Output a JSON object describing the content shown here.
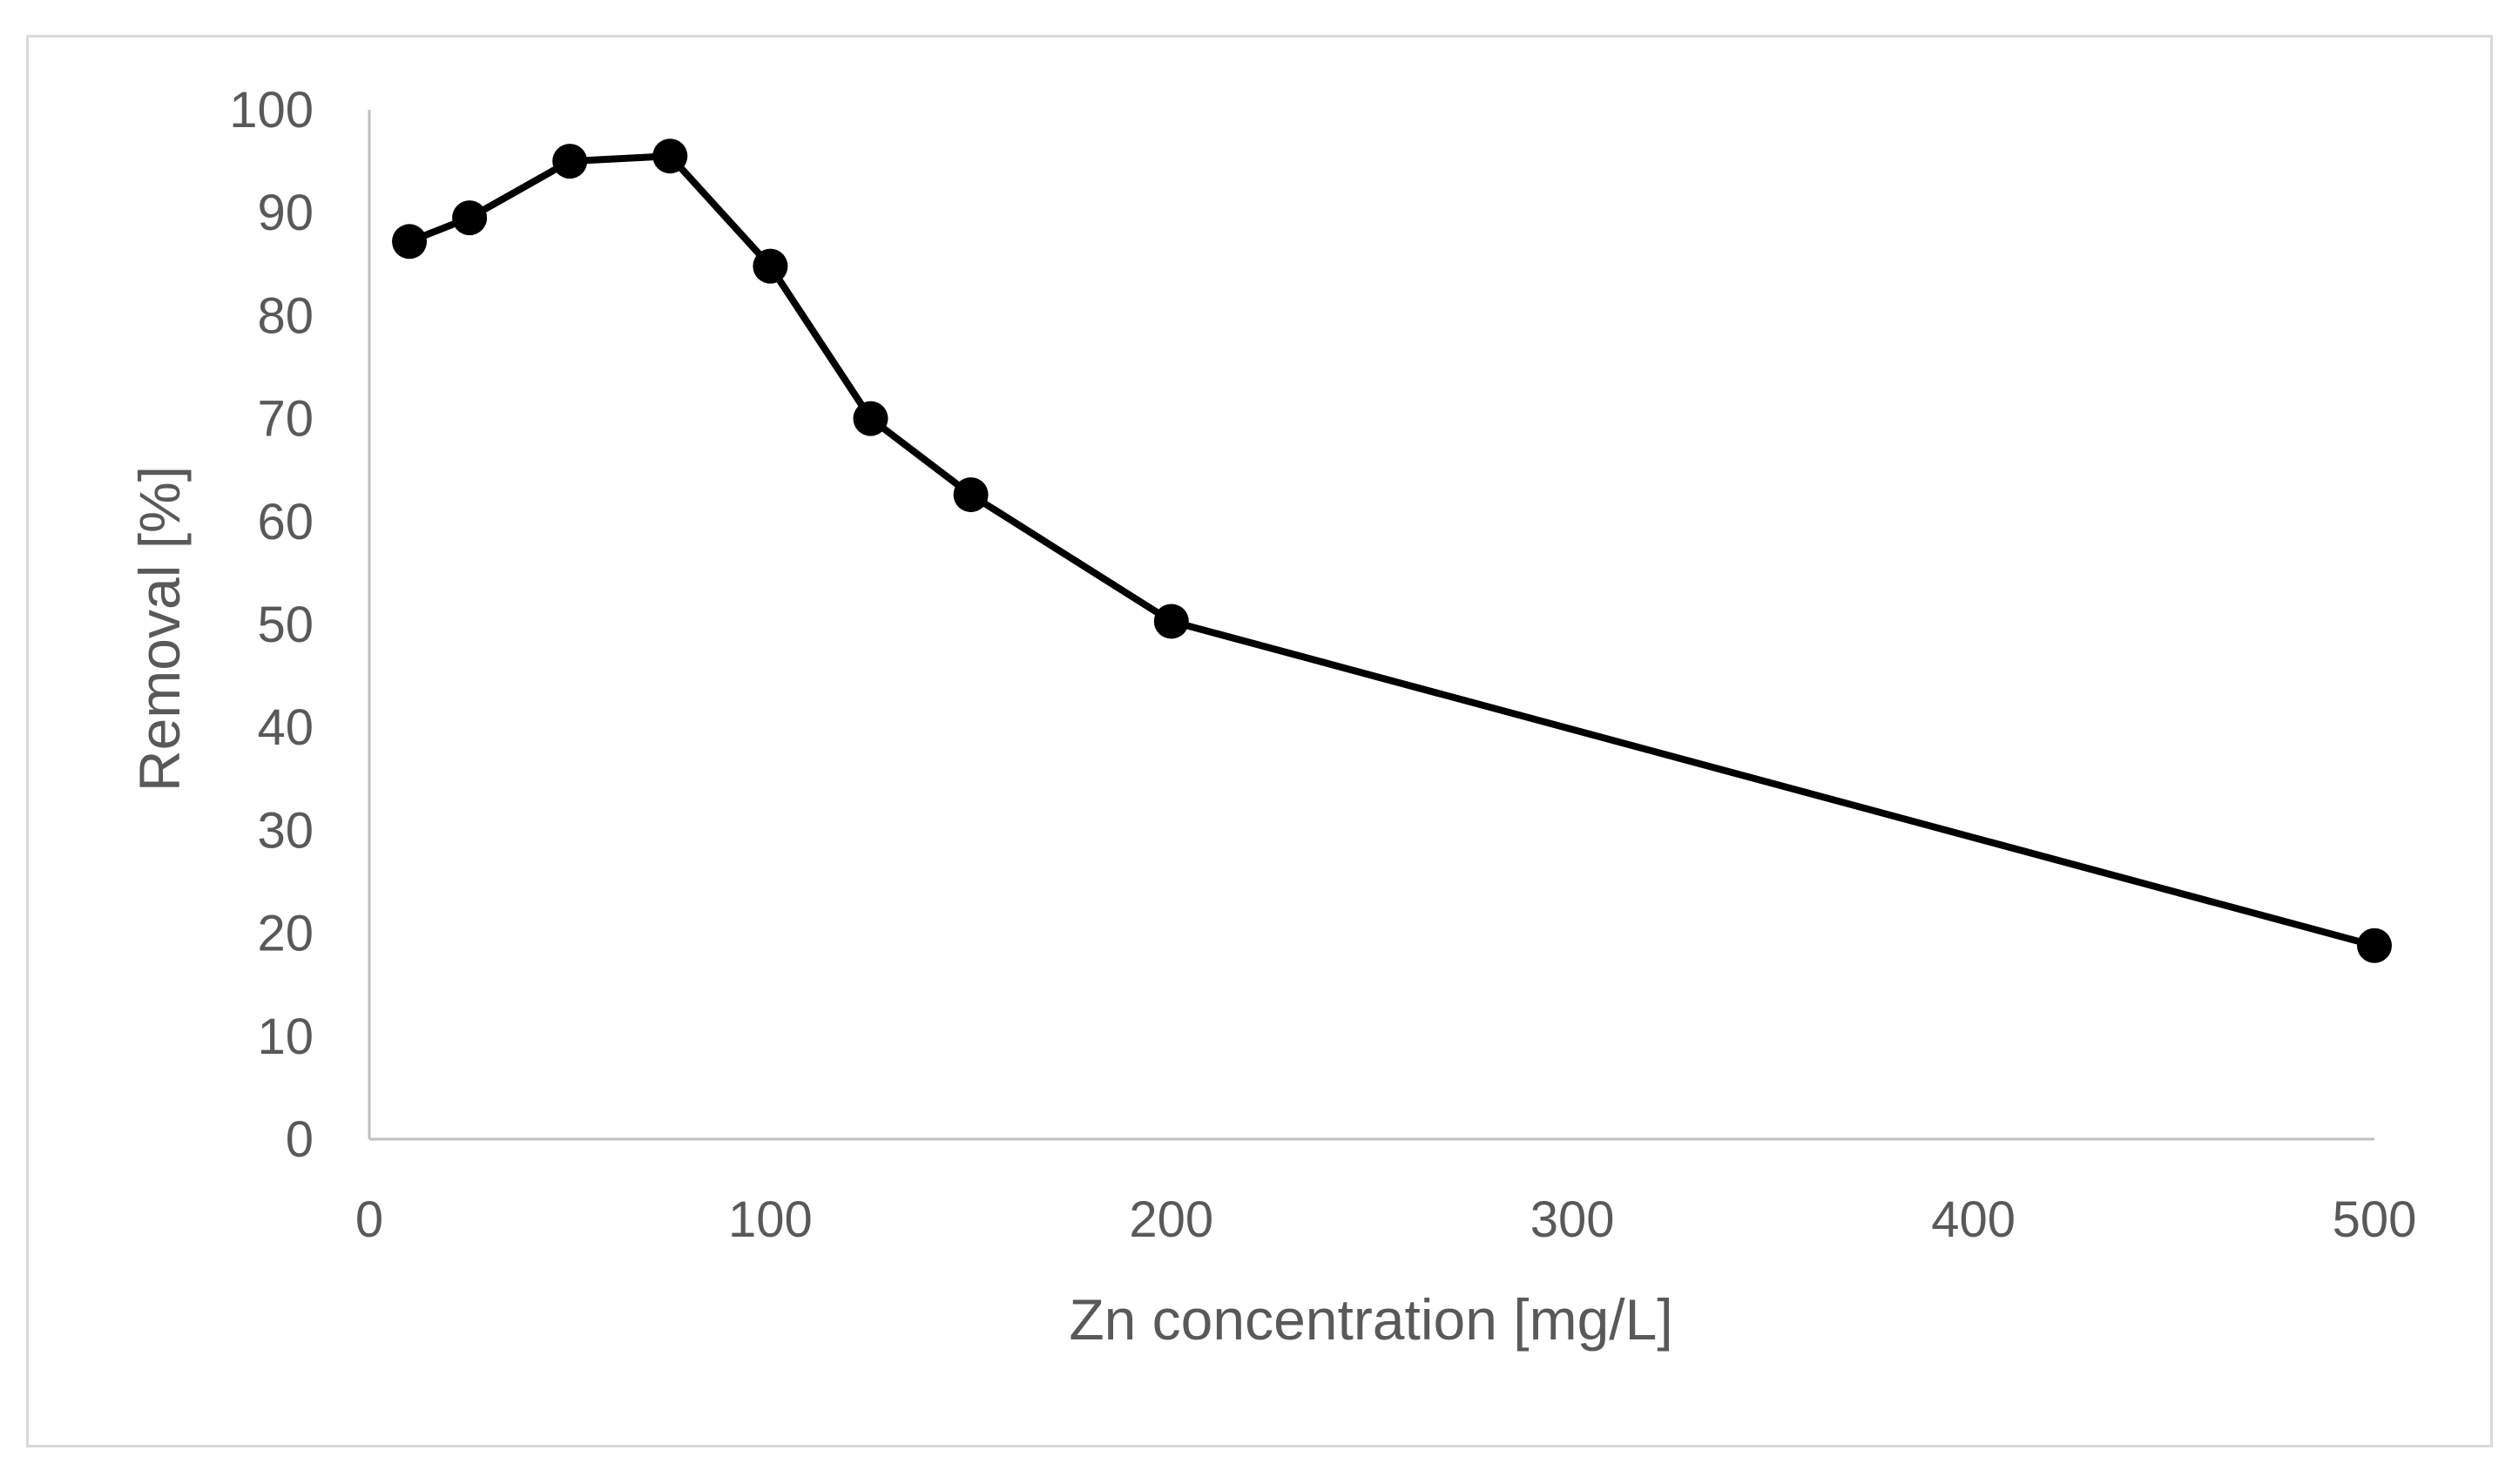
{
  "chart_data": {
    "type": "line",
    "title": "",
    "xlabel": "Zn concentration [mg/L]",
    "ylabel": "Removal [%]",
    "xlim": [
      0,
      500
    ],
    "ylim": [
      0,
      100
    ],
    "x_ticks": [
      0,
      100,
      200,
      300,
      400,
      500
    ],
    "y_ticks": [
      0,
      10,
      20,
      30,
      40,
      50,
      60,
      70,
      80,
      90,
      100
    ],
    "x_tick_labels": [
      "0",
      "100",
      "200",
      "300",
      "400",
      "500"
    ],
    "y_tick_labels": [
      "0",
      "10",
      "20",
      "30",
      "40",
      "50",
      "60",
      "70",
      "80",
      "90",
      "100"
    ],
    "grid": false,
    "legend": "none",
    "series": [
      {
        "name": "Removal",
        "color": "#000000",
        "marker": "circle",
        "x": [
          10,
          25,
          50,
          75,
          100,
          125,
          150,
          200,
          500
        ],
        "y": [
          87.2,
          89.5,
          95.0,
          95.5,
          84.8,
          70.0,
          62.6,
          50.3,
          18.8
        ]
      }
    ]
  }
}
